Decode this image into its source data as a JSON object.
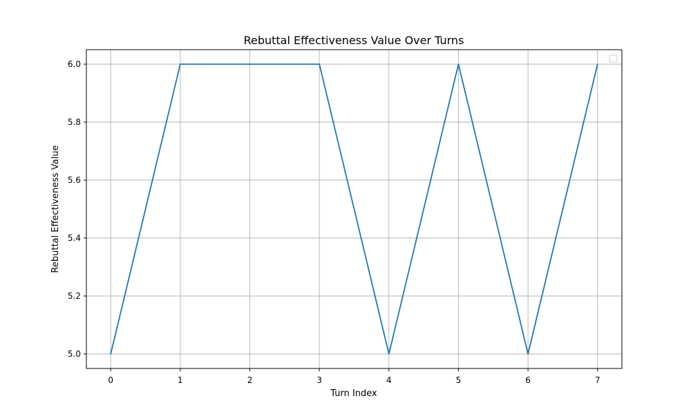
{
  "chart_data": {
    "type": "line",
    "title": "Rebuttal Effectiveness Value Over Turns",
    "xlabel": "Turn Index",
    "ylabel": "Rebuttal Effectiveness Value",
    "x": [
      0,
      1,
      2,
      3,
      4,
      5,
      6,
      7
    ],
    "series": [
      {
        "values": [
          5.0,
          6.0,
          6.0,
          6.0,
          5.0,
          6.0,
          5.0,
          6.0
        ]
      }
    ],
    "xlim": [
      -0.35,
      7.35
    ],
    "ylim": [
      4.95,
      6.05
    ],
    "xticks": [
      0,
      1,
      2,
      3,
      4,
      5,
      6,
      7
    ],
    "xtick_labels": [
      "0",
      "1",
      "2",
      "3",
      "4",
      "5",
      "6",
      "7"
    ],
    "yticks": [
      5.0,
      5.2,
      5.4,
      5.6,
      5.8,
      6.0
    ],
    "ytick_labels": [
      "5.0",
      "5.2",
      "5.4",
      "5.6",
      "5.8",
      "6.0"
    ],
    "grid": true,
    "legend_placement": "top-right",
    "line_color": "#1f77b4"
  }
}
